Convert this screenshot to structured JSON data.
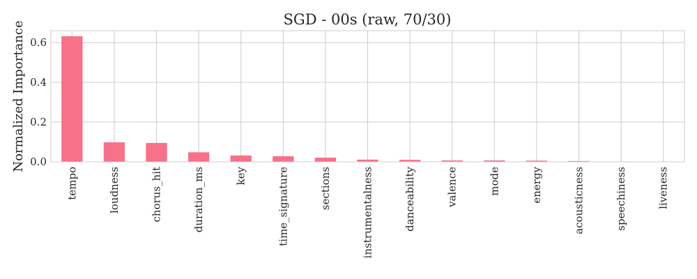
{
  "chart_data": {
    "type": "bar",
    "title": "SGD - 00s (raw, 70/30)",
    "xlabel": "",
    "ylabel": "Normalized Importance",
    "ylim": [
      0,
      0.66
    ],
    "yticks": [
      0.0,
      0.2,
      0.4,
      0.6
    ],
    "ytick_labels": [
      "0.0",
      "0.2",
      "0.4",
      "0.6"
    ],
    "grid": true,
    "bar_color": "#f77189",
    "categories": [
      "tempo",
      "loudness",
      "chorus_hit",
      "duration_ms",
      "key",
      "time_signature",
      "sections",
      "instrumentalness",
      "danceability",
      "valence",
      "mode",
      "energy",
      "acousticness",
      "speechiness",
      "liveness"
    ],
    "values": [
      0.632,
      0.098,
      0.095,
      0.048,
      0.032,
      0.028,
      0.021,
      0.011,
      0.01,
      0.007,
      0.007,
      0.006,
      0.004,
      0.001,
      0.0005
    ]
  }
}
